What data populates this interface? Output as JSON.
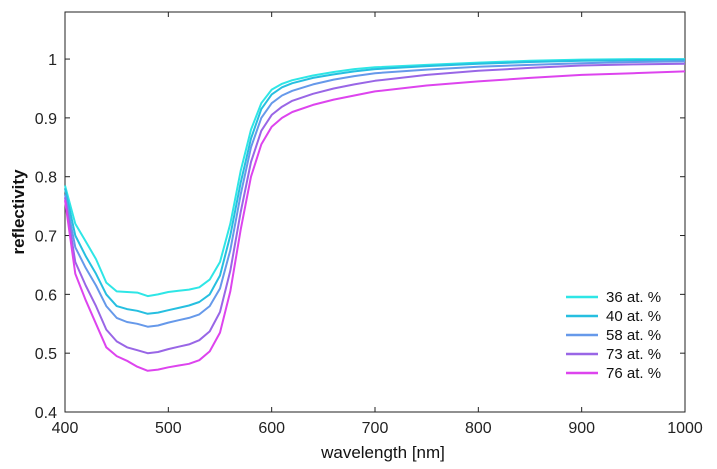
{
  "chart_data": {
    "type": "line",
    "title": "",
    "xlabel": "wavelength [nm]",
    "ylabel": "reflectivity",
    "xlim": [
      400,
      1000
    ],
    "ylim": [
      0.4,
      1.08
    ],
    "xticks": [
      400,
      500,
      600,
      700,
      800,
      900,
      1000
    ],
    "yticks": [
      0.4,
      0.5,
      0.6,
      0.7,
      0.8,
      0.9,
      1.0
    ],
    "ytick_labels": [
      "0.4",
      "0.5",
      "0.6",
      "0.7",
      "0.8",
      "0.9",
      "1"
    ],
    "grid": false,
    "legend_position": "bottom-right",
    "x": [
      400,
      410,
      420,
      430,
      440,
      450,
      460,
      470,
      480,
      490,
      500,
      510,
      520,
      530,
      540,
      550,
      560,
      570,
      580,
      590,
      600,
      610,
      620,
      640,
      660,
      680,
      700,
      750,
      800,
      850,
      900,
      950,
      1000
    ],
    "series": [
      {
        "name": "36 at. %",
        "color": "#2ee6e6",
        "values": [
          0.785,
          0.72,
          0.69,
          0.66,
          0.62,
          0.605,
          0.604,
          0.603,
          0.597,
          0.6,
          0.604,
          0.606,
          0.608,
          0.612,
          0.625,
          0.655,
          0.72,
          0.81,
          0.88,
          0.925,
          0.948,
          0.958,
          0.964,
          0.972,
          0.978,
          0.983,
          0.986,
          0.99,
          0.994,
          0.997,
          0.999,
          1.0,
          1.0
        ]
      },
      {
        "name": "40 at. %",
        "color": "#26bfe0",
        "values": [
          0.78,
          0.7,
          0.665,
          0.635,
          0.6,
          0.58,
          0.575,
          0.572,
          0.567,
          0.569,
          0.573,
          0.577,
          0.581,
          0.587,
          0.6,
          0.632,
          0.7,
          0.79,
          0.865,
          0.915,
          0.94,
          0.952,
          0.959,
          0.968,
          0.974,
          0.979,
          0.983,
          0.988,
          0.992,
          0.995,
          0.997,
          0.998,
          0.999
        ]
      },
      {
        "name": "58 at. %",
        "color": "#6699ea",
        "values": [
          0.77,
          0.68,
          0.645,
          0.615,
          0.58,
          0.56,
          0.553,
          0.55,
          0.545,
          0.547,
          0.552,
          0.556,
          0.56,
          0.566,
          0.58,
          0.61,
          0.675,
          0.77,
          0.85,
          0.9,
          0.925,
          0.938,
          0.946,
          0.957,
          0.965,
          0.971,
          0.976,
          0.982,
          0.987,
          0.99,
          0.993,
          0.995,
          0.996
        ]
      },
      {
        "name": "73 at. %",
        "color": "#9966e6",
        "values": [
          0.765,
          0.655,
          0.615,
          0.58,
          0.54,
          0.52,
          0.51,
          0.505,
          0.5,
          0.502,
          0.507,
          0.511,
          0.515,
          0.522,
          0.537,
          0.57,
          0.64,
          0.74,
          0.825,
          0.878,
          0.905,
          0.919,
          0.929,
          0.941,
          0.95,
          0.957,
          0.963,
          0.973,
          0.98,
          0.985,
          0.989,
          0.991,
          0.992
        ]
      },
      {
        "name": "76 at. %",
        "color": "#dd44ee",
        "values": [
          0.76,
          0.635,
          0.59,
          0.55,
          0.51,
          0.495,
          0.487,
          0.477,
          0.47,
          0.472,
          0.476,
          0.479,
          0.482,
          0.488,
          0.503,
          0.535,
          0.605,
          0.71,
          0.8,
          0.855,
          0.885,
          0.9,
          0.91,
          0.922,
          0.931,
          0.938,
          0.945,
          0.955,
          0.962,
          0.968,
          0.973,
          0.976,
          0.979
        ]
      }
    ]
  }
}
